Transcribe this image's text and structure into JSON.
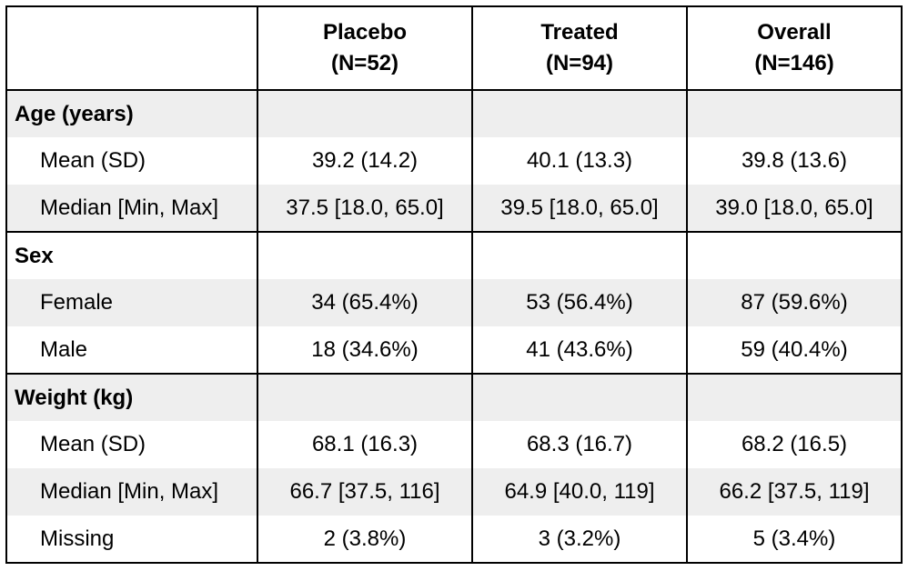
{
  "table": {
    "columns": [
      {
        "name": "Placebo",
        "n": "(N=52)"
      },
      {
        "name": "Treated",
        "n": "(N=94)"
      },
      {
        "name": "Overall",
        "n": "(N=146)"
      }
    ],
    "sections": [
      {
        "label": "Age (years)",
        "rows": [
          {
            "label": "Mean (SD)",
            "values": [
              "39.2 (14.2)",
              "40.1 (13.3)",
              "39.8 (13.6)"
            ]
          },
          {
            "label": "Median [Min, Max]",
            "values": [
              "37.5 [18.0, 65.0]",
              "39.5 [18.0, 65.0]",
              "39.0 [18.0, 65.0]"
            ]
          }
        ]
      },
      {
        "label": "Sex",
        "rows": [
          {
            "label": "Female",
            "values": [
              "34 (65.4%)",
              "53 (56.4%)",
              "87 (59.6%)"
            ]
          },
          {
            "label": "Male",
            "values": [
              "18 (34.6%)",
              "41 (43.6%)",
              "59 (40.4%)"
            ]
          }
        ]
      },
      {
        "label": "Weight (kg)",
        "rows": [
          {
            "label": "Mean (SD)",
            "values": [
              "68.1 (16.3)",
              "68.3 (16.7)",
              "68.2 (16.5)"
            ]
          },
          {
            "label": "Median [Min, Max]",
            "values": [
              "66.7 [37.5, 116]",
              "64.9 [40.0, 119]",
              "66.2 [37.5, 119]"
            ]
          },
          {
            "label": "Missing",
            "values": [
              "2 (3.8%)",
              "3 (3.2%)",
              "5 (3.4%)"
            ]
          }
        ]
      }
    ]
  }
}
